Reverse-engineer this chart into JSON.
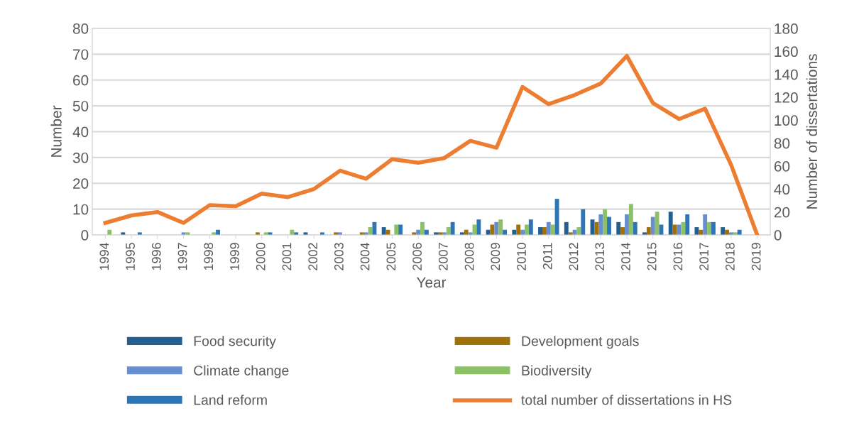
{
  "chart_data": {
    "type": "bar",
    "xlabel": "Year",
    "ylabel": "Number",
    "y2label": "Number of dissertations",
    "categories": [
      "1994",
      "1995",
      "1996",
      "1997",
      "1998",
      "1999",
      "2000",
      "2001",
      "2002",
      "2003",
      "2004",
      "2005",
      "2006",
      "2007",
      "2008",
      "2009",
      "2010",
      "2011",
      "2012",
      "2013",
      "2014",
      "2015",
      "2016",
      "2017",
      "2018",
      "2019"
    ],
    "series": [
      {
        "name": "Food security",
        "color": "#255e91",
        "values": [
          0,
          1,
          0,
          0,
          0,
          0,
          0,
          0,
          1,
          0,
          0,
          3,
          0,
          1,
          1,
          2,
          2,
          3,
          5,
          6,
          5,
          1,
          9,
          3,
          3,
          0
        ]
      },
      {
        "name": "Development goals",
        "color": "#9e7109",
        "values": [
          0,
          0,
          0,
          0,
          0,
          0,
          1,
          0,
          0,
          1,
          1,
          2,
          1,
          1,
          2,
          4,
          4,
          3,
          1,
          5,
          3,
          3,
          4,
          2,
          2,
          0
        ]
      },
      {
        "name": "Climate change",
        "color": "#698ed0",
        "values": [
          0,
          0,
          0,
          1,
          0,
          0,
          0,
          0,
          0,
          1,
          1,
          0,
          2,
          1,
          1,
          5,
          2,
          5,
          2,
          8,
          8,
          7,
          4,
          8,
          1,
          0
        ]
      },
      {
        "name": "Biodiversity",
        "color": "#8cc168",
        "values": [
          2,
          0,
          0,
          1,
          1,
          0,
          1,
          2,
          0,
          0,
          3,
          4,
          5,
          3,
          4,
          6,
          4,
          4,
          3,
          10,
          12,
          9,
          5,
          5,
          1,
          0
        ]
      },
      {
        "name": "Land reform",
        "color": "#2e75b6",
        "values": [
          0,
          1,
          0,
          0,
          2,
          0,
          1,
          1,
          1,
          0,
          5,
          4,
          2,
          5,
          6,
          2,
          6,
          14,
          10,
          7,
          5,
          4,
          8,
          5,
          2,
          0
        ]
      },
      {
        "name": "total number of dissertations in HS",
        "color": "#ed7d31",
        "type": "line",
        "axis": "y2",
        "values": [
          10.5,
          17,
          20,
          10.5,
          26,
          25,
          36,
          33,
          40,
          56,
          49,
          66,
          63,
          67,
          82,
          76,
          129,
          114,
          122,
          132,
          156,
          115,
          101,
          110,
          61,
          0
        ]
      }
    ],
    "ylim": [
      0,
      80
    ],
    "yticks": [
      0,
      10,
      20,
      30,
      40,
      50,
      60,
      70,
      80
    ],
    "y2lim": [
      0,
      180
    ],
    "y2ticks": [
      0,
      20,
      40,
      60,
      80,
      100,
      120,
      140,
      160,
      180
    ],
    "grid": "y",
    "legend": "bottom",
    "marker": "none",
    "line_style": "solid"
  }
}
